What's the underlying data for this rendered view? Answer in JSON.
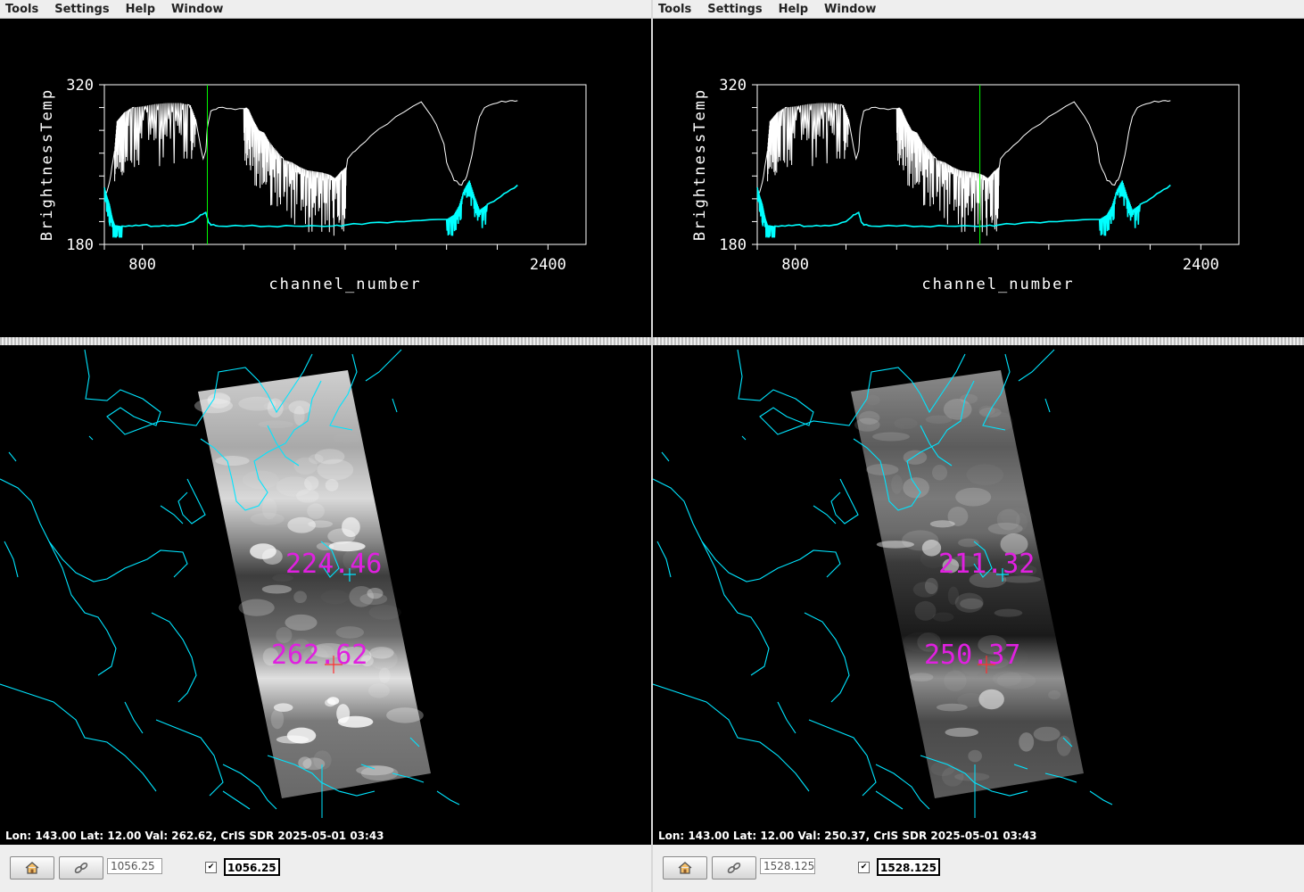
{
  "menu": [
    "Tools",
    "Settings",
    "Help",
    "Window"
  ],
  "colors": {
    "spectrum": "#ffffff",
    "secondary_spectrum": "#00ffff",
    "marker": "#00ff00",
    "coast": "#00e5ff",
    "readout": "#e020e0"
  },
  "panels": [
    {
      "chart_data": {
        "type": "line",
        "xlabel": "channel_number",
        "ylabel": "BrightnessTemp",
        "y_tick_labels": [
          "320",
          "180"
        ],
        "x_tick_labels": [
          "800",
          "2400"
        ],
        "xlim": [
          650,
          2550
        ],
        "ylim": [
          180,
          320
        ],
        "marker_x": 1056.25,
        "series": [
          {
            "segments": [
              [
                [
                  650,
                  222
                ],
                [
                  660,
                  226
                ],
                [
                  675,
                  240
                ],
                [
                  690,
                  262
                ],
                [
                  700,
                  288
                ],
                [
                  715,
                  292
                ],
                [
                  730,
                  296
                ],
                [
                  760,
                  300
                ],
                [
                  800,
                  301
                ],
                [
                  850,
                  303
                ],
                [
                  900,
                  304
                ],
                [
                  950,
                  304
                ],
                [
                  990,
                  302
                ],
                [
                  1010,
                  290
                ],
                [
                  1030,
                  265
                ],
                [
                  1040,
                  255
                ],
                [
                  1050,
                  262
                ],
                [
                  1056,
                  282
                ],
                [
                  1070,
                  297
                ],
                [
                  1100,
                  300
                ],
                [
                  1150,
                  299
                ],
                [
                  1200,
                  299
                ],
                [
                  1210,
                  300
                ],
                [
                  1220,
                  298
                ],
                [
                  1240,
                  288
                ],
                [
                  1260,
                  280
                ],
                [
                  1280,
                  278
                ],
                [
                  1300,
                  270
                ],
                [
                  1330,
                  262
                ],
                [
                  1360,
                  254
                ],
                [
                  1390,
                  252
                ],
                [
                  1420,
                  248
                ],
                [
                  1450,
                  245
                ],
                [
                  1480,
                  244
                ],
                [
                  1510,
                  243
                ],
                [
                  1540,
                  241
                ],
                [
                  1560,
                  238
                ],
                [
                  1580,
                  243
                ],
                [
                  1595,
                  246
                ],
                [
                  1605,
                  248
                ],
                [
                  1610,
                  255
                ],
                [
                  1640,
                  262
                ],
                [
                  1700,
                  275
                ],
                [
                  1800,
                  292
                ],
                [
                  1900,
                  305
                ],
                [
                  1960,
                  285
                ],
                [
                  1990,
                  268
                ],
                [
                  2000,
                  252
                ],
                [
                  2030,
                  236
                ],
                [
                  2060,
                  232
                ],
                [
                  2080,
                  240
                ],
                [
                  2100,
                  258
                ],
                [
                  2115,
                  278
                ],
                [
                  2130,
                  292
                ],
                [
                  2150,
                  300
                ],
                [
                  2200,
                  304
                ],
                [
                  2250,
                  306
                ],
                [
                  2280,
                  306
                ]
              ]
            ],
            "spiky": [
              [
                1200,
                1600
              ],
              [
                690,
                995
              ]
            ]
          },
          {
            "segments": [
              [
                [
                  650,
                  230
                ],
                [
                  660,
                  222
                ],
                [
                  670,
                  215
                ],
                [
                  680,
                  204
                ],
                [
                  690,
                  197
                ],
                [
                  720,
                  196
                ],
                [
                  760,
                  196
                ],
                [
                  800,
                  197
                ],
                [
                  850,
                  196
                ],
                [
                  900,
                  196
                ],
                [
                  950,
                  197
                ],
                [
                  1000,
                  200
                ],
                [
                  1030,
                  206
                ],
                [
                  1050,
                  208
                ],
                [
                  1060,
                  200
                ],
                [
                  1070,
                  197
                ],
                [
                  1100,
                  196
                ],
                [
                  1200,
                  196
                ],
                [
                  1300,
                  196
                ],
                [
                  1400,
                  196
                ],
                [
                  1500,
                  196
                ],
                [
                  1550,
                  196
                ],
                [
                  1600,
                  197
                ],
                [
                  1700,
                  199
                ],
                [
                  1800,
                  200
                ],
                [
                  1900,
                  201
                ],
                [
                  2000,
                  202
                ],
                [
                  2030,
                  206
                ],
                [
                  2050,
                  214
                ],
                [
                  2070,
                  228
                ],
                [
                  2090,
                  236
                ],
                [
                  2110,
                  222
                ],
                [
                  2130,
                  210
                ],
                [
                  2160,
                  215
                ],
                [
                  2200,
                  220
                ],
                [
                  2240,
                  226
                ],
                [
                  2280,
                  232
                ]
              ]
            ],
            "spiky": [
              [
                650,
                700
              ],
              [
                2000,
                2150
              ]
            ]
          }
        ]
      },
      "map": {
        "readouts": [
          {
            "text": "224.46"
          },
          {
            "text": "262.62"
          }
        ],
        "strip_dark": false
      },
      "status": "Lon: 143.00   Lat: 12.00   Val: 262.62,   CrIS SDR 2025-05-01 03:43",
      "toolbar": {
        "field": "1056.25",
        "value": "1056.25",
        "check": "✔"
      }
    },
    {
      "chart_data": {
        "type": "line",
        "xlabel": "channel_number",
        "ylabel": "BrightnessTemp",
        "y_tick_labels": [
          "320",
          "180"
        ],
        "x_tick_labels": [
          "800",
          "2400"
        ],
        "xlim": [
          650,
          2550
        ],
        "ylim": [
          180,
          320
        ],
        "marker_x": 1528.125,
        "series": [
          {
            "segments": [
              [
                [
                  650,
                  222
                ],
                [
                  660,
                  226
                ],
                [
                  675,
                  240
                ],
                [
                  690,
                  262
                ],
                [
                  700,
                  288
                ],
                [
                  715,
                  292
                ],
                [
                  730,
                  296
                ],
                [
                  760,
                  300
                ],
                [
                  800,
                  301
                ],
                [
                  850,
                  303
                ],
                [
                  900,
                  304
                ],
                [
                  950,
                  304
                ],
                [
                  990,
                  302
                ],
                [
                  1010,
                  290
                ],
                [
                  1030,
                  265
                ],
                [
                  1040,
                  255
                ],
                [
                  1050,
                  262
                ],
                [
                  1056,
                  282
                ],
                [
                  1070,
                  297
                ],
                [
                  1100,
                  300
                ],
                [
                  1150,
                  299
                ],
                [
                  1200,
                  299
                ],
                [
                  1210,
                  300
                ],
                [
                  1220,
                  298
                ],
                [
                  1240,
                  288
                ],
                [
                  1260,
                  280
                ],
                [
                  1280,
                  278
                ],
                [
                  1300,
                  270
                ],
                [
                  1330,
                  262
                ],
                [
                  1360,
                  254
                ],
                [
                  1390,
                  252
                ],
                [
                  1420,
                  248
                ],
                [
                  1450,
                  245
                ],
                [
                  1480,
                  244
                ],
                [
                  1510,
                  243
                ],
                [
                  1540,
                  241
                ],
                [
                  1560,
                  238
                ],
                [
                  1580,
                  243
                ],
                [
                  1595,
                  246
                ],
                [
                  1605,
                  248
                ],
                [
                  1610,
                  255
                ],
                [
                  1640,
                  262
                ],
                [
                  1700,
                  275
                ],
                [
                  1800,
                  292
                ],
                [
                  1900,
                  305
                ],
                [
                  1960,
                  285
                ],
                [
                  1990,
                  268
                ],
                [
                  2000,
                  252
                ],
                [
                  2030,
                  236
                ],
                [
                  2060,
                  232
                ],
                [
                  2080,
                  240
                ],
                [
                  2100,
                  258
                ],
                [
                  2115,
                  278
                ],
                [
                  2130,
                  292
                ],
                [
                  2150,
                  300
                ],
                [
                  2200,
                  304
                ],
                [
                  2250,
                  306
                ],
                [
                  2280,
                  306
                ]
              ]
            ],
            "spiky": [
              [
                1200,
                1600
              ],
              [
                690,
                995
              ]
            ]
          },
          {
            "segments": [
              [
                [
                  650,
                  230
                ],
                [
                  660,
                  222
                ],
                [
                  670,
                  215
                ],
                [
                  680,
                  204
                ],
                [
                  690,
                  197
                ],
                [
                  720,
                  196
                ],
                [
                  760,
                  196
                ],
                [
                  800,
                  197
                ],
                [
                  850,
                  196
                ],
                [
                  900,
                  196
                ],
                [
                  950,
                  197
                ],
                [
                  1000,
                  200
                ],
                [
                  1030,
                  206
                ],
                [
                  1050,
                  208
                ],
                [
                  1060,
                  200
                ],
                [
                  1070,
                  197
                ],
                [
                  1100,
                  196
                ],
                [
                  1200,
                  196
                ],
                [
                  1300,
                  196
                ],
                [
                  1400,
                  196
                ],
                [
                  1500,
                  196
                ],
                [
                  1550,
                  196
                ],
                [
                  1600,
                  197
                ],
                [
                  1700,
                  199
                ],
                [
                  1800,
                  200
                ],
                [
                  1900,
                  201
                ],
                [
                  2000,
                  202
                ],
                [
                  2030,
                  206
                ],
                [
                  2050,
                  214
                ],
                [
                  2070,
                  228
                ],
                [
                  2090,
                  236
                ],
                [
                  2110,
                  222
                ],
                [
                  2130,
                  210
                ],
                [
                  2160,
                  215
                ],
                [
                  2200,
                  220
                ],
                [
                  2240,
                  226
                ],
                [
                  2280,
                  232
                ]
              ]
            ],
            "spiky": [
              [
                650,
                700
              ],
              [
                2000,
                2150
              ]
            ]
          }
        ]
      },
      "map": {
        "readouts": [
          {
            "text": "211.32"
          },
          {
            "text": "250.37"
          }
        ],
        "strip_dark": true
      },
      "status": "Lon: 143.00   Lat: 12.00   Val: 250.37,   CrIS SDR 2025-05-01 03:43",
      "toolbar": {
        "field": "1528.125",
        "value": "1528.125",
        "check": "✔"
      }
    }
  ]
}
